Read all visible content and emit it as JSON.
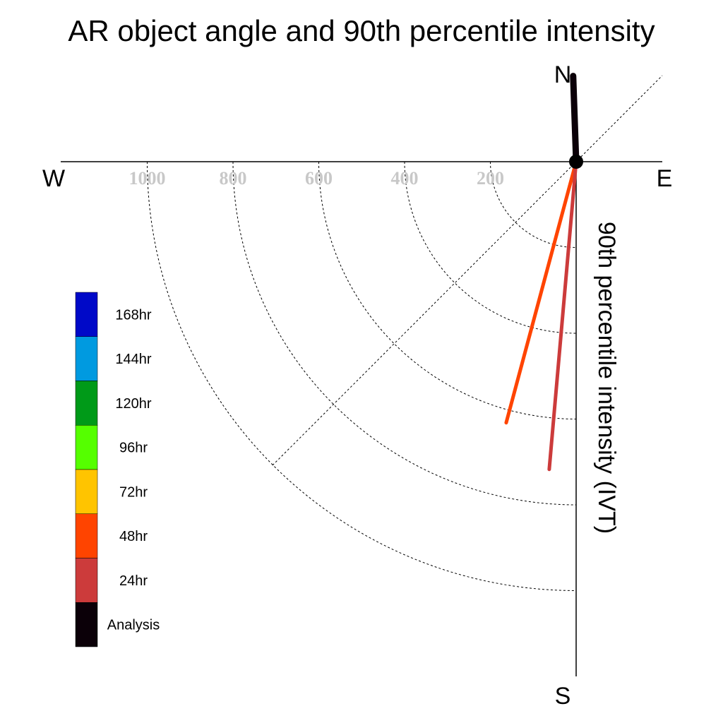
{
  "chart_data": {
    "type": "polar-vector",
    "title": "AR object angle and 90th percentile intensity",
    "ylabel": "90th percentile intensity (IVT)",
    "compass": {
      "north": "N",
      "south": "S",
      "east": "E",
      "west": "W"
    },
    "radial_ticks": [
      200,
      400,
      600,
      800,
      1000
    ],
    "radial_tick_labels": [
      "200",
      "400",
      "600",
      "800",
      "1000"
    ],
    "rmax": 1200,
    "angle_convention": "degrees clockwise from north",
    "vectors": [
      {
        "name": "Analysis",
        "angle_deg": 358,
        "magnitude": 200,
        "color": "#0b0008",
        "width": 9
      },
      {
        "name": "48hr",
        "angle_deg": 195,
        "magnitude": 630,
        "color": "#ff4400",
        "width": 5
      },
      {
        "name": "24hr",
        "angle_deg": 185,
        "magnitude": 720,
        "color": "#cc3b3b",
        "width": 5
      }
    ],
    "legend": [
      {
        "label": "168hr",
        "color": "#0009c8"
      },
      {
        "label": "144hr",
        "color": "#009ae0"
      },
      {
        "label": "120hr",
        "color": "#009a18"
      },
      {
        "label": "96hr",
        "color": "#55ff00"
      },
      {
        "label": "72hr",
        "color": "#ffc400"
      },
      {
        "label": "48hr",
        "color": "#ff4400"
      },
      {
        "label": "24hr",
        "color": "#cc3b3b"
      },
      {
        "label": "Analysis",
        "color": "#0b0008"
      }
    ],
    "legend_placement": "left"
  }
}
